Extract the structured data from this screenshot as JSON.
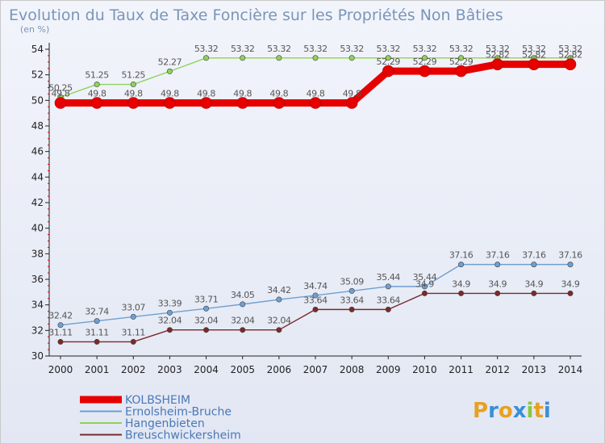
{
  "chart_data": {
    "type": "line",
    "title": "Evolution du Taux de Taxe Foncière sur les Propriétés Non Bâties",
    "subtitle": "(en %)",
    "xlabel": "",
    "ylabel": "",
    "ylim": [
      30,
      54
    ],
    "yticks": [
      30,
      32,
      34,
      36,
      38,
      40,
      42,
      44,
      46,
      48,
      50,
      52,
      54
    ],
    "x": [
      "2000",
      "2001",
      "2002",
      "2003",
      "2004",
      "2005",
      "2006",
      "2007",
      "2008",
      "2009",
      "2010",
      "2011",
      "2012",
      "2013",
      "2014"
    ],
    "grid": false,
    "legend_position": "bottom-left",
    "series": [
      {
        "name": "KOLBSHEIM",
        "color": "#e60000",
        "values": [
          49.8,
          49.8,
          49.8,
          49.8,
          49.8,
          49.8,
          49.8,
          49.8,
          49.8,
          52.29,
          52.29,
          52.29,
          52.82,
          52.82,
          52.82
        ],
        "labels": [
          "49.8",
          "49.8",
          "49.8",
          "49.8",
          "49.8",
          "49.8",
          "49.8",
          "49.8",
          "49.8",
          "52.29",
          "52.29",
          "52.29",
          "52.82",
          "52.82",
          "52.82"
        ]
      },
      {
        "name": "Ernolsheim-Bruche",
        "color": "#6ea0d2",
        "values": [
          32.42,
          32.74,
          33.07,
          33.39,
          33.71,
          34.05,
          34.42,
          34.74,
          35.09,
          35.44,
          35.44,
          37.16,
          37.16,
          37.16,
          37.16
        ],
        "labels": [
          "32.42",
          "32.74",
          "33.07",
          "33.39",
          "33.71",
          "34.05",
          "34.42",
          "34.74",
          "35.09",
          "35.44",
          "35.44",
          "37.16",
          "37.16",
          "37.16",
          "37.16"
        ]
      },
      {
        "name": "Hangenbieten",
        "color": "#8fd25a",
        "values": [
          50.25,
          51.25,
          51.25,
          52.27,
          53.32,
          53.32,
          53.32,
          53.32,
          53.32,
          53.32,
          53.32,
          53.32,
          53.32,
          53.32,
          53.32
        ],
        "labels": [
          "50.25",
          "51.25",
          "51.25",
          "52.27",
          "53.32",
          "53.32",
          "53.32",
          "53.32",
          "53.32",
          "53.32",
          "53.32",
          "53.32",
          "53.32",
          "53.32",
          "53.32"
        ]
      },
      {
        "name": "Breuschwickersheim",
        "color": "#7a2a2a",
        "values": [
          31.11,
          31.11,
          31.11,
          32.04,
          32.04,
          32.04,
          32.04,
          33.64,
          33.64,
          33.64,
          34.9,
          34.9,
          34.9,
          34.9,
          34.9
        ],
        "labels": [
          "31.11",
          "31.11",
          "31.11",
          "32.04",
          "32.04",
          "32.04",
          "32.04",
          "33.64",
          "33.64",
          "33.64",
          "34.9",
          "34.9",
          "34.9",
          "34.9",
          "34.9"
        ]
      }
    ]
  },
  "logo": {
    "text": "Proxiti",
    "letters": [
      "P",
      "r",
      "o",
      "x",
      "i",
      "t",
      "i"
    ],
    "colors": [
      "#e8a020",
      "#3b8fd6",
      "#e8a020",
      "#3b8fd6",
      "#8cc63f",
      "#e8a020",
      "#3b8fd6"
    ]
  }
}
